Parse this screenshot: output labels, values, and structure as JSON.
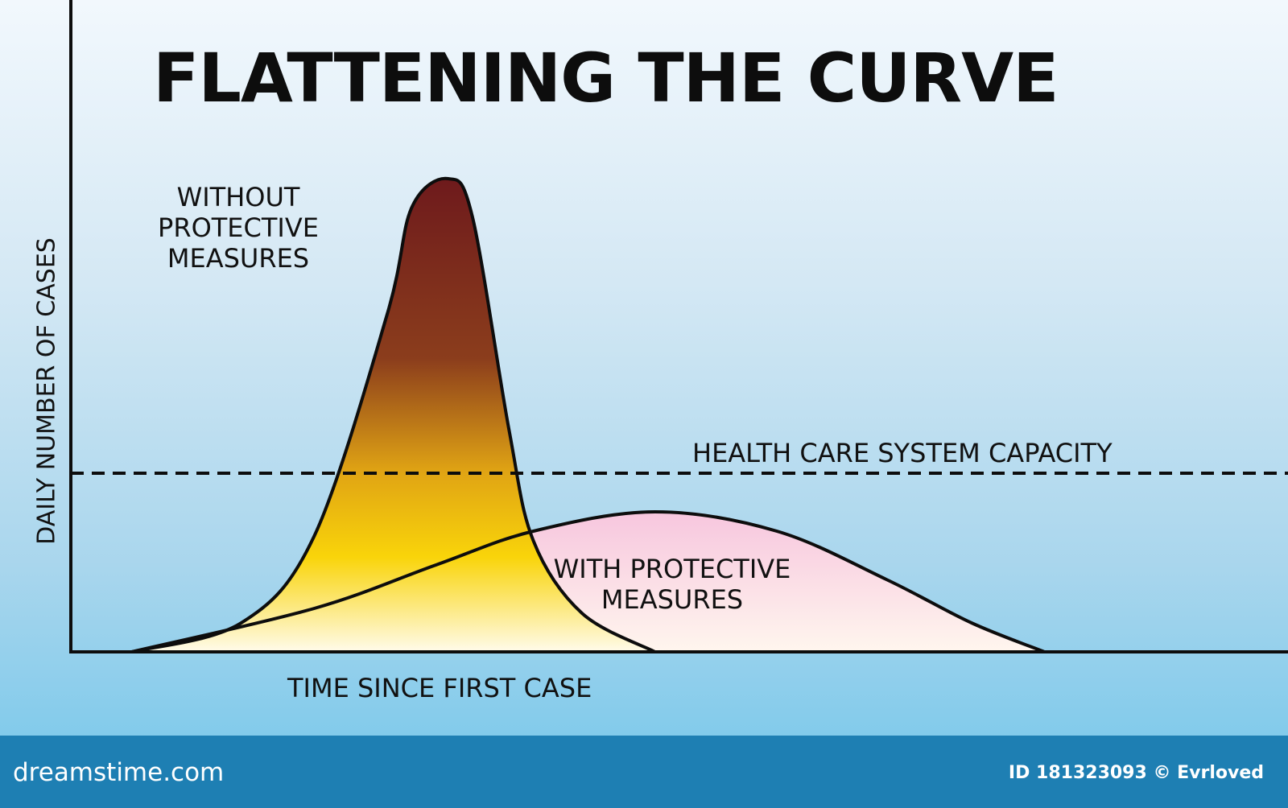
{
  "chart_data": {
    "type": "area",
    "title": "FLATTENING THE CURVE",
    "xlabel": "TIME SINCE FIRST CASE",
    "ylabel": "DAILY NUMBER OF CASES",
    "xlim": [
      0,
      100
    ],
    "ylim": [
      0,
      100
    ],
    "series": [
      {
        "name": "WITHOUT PROTECTIVE MEASURES",
        "x": [
          5,
          14,
          20,
          26,
          28,
          31,
          33,
          36,
          38,
          42,
          48
        ],
        "y": [
          0,
          6,
          24,
          70,
          92,
          98,
          90,
          46,
          23,
          8,
          0
        ]
      },
      {
        "name": "WITH PROTECTIVE MEASURES",
        "x": [
          5,
          20,
          30,
          38,
          48,
          58,
          67,
          74,
          80
        ],
        "y": [
          0,
          9,
          18,
          25,
          29,
          25,
          15,
          6,
          0
        ]
      }
    ],
    "hlines": [
      {
        "label": "HEALTH CARE SYSTEM CAPACITY",
        "y": 37
      }
    ],
    "grid": false,
    "legend": "none",
    "colors": {
      "peak_top": "#6e1a1c",
      "peak_mid": "#8b3d1c",
      "peak_amber": "#e0a414",
      "peak_yellow": "#f9d40a",
      "peak_base": "#fffbea",
      "flat_top": "#f7c6de",
      "flat_base": "#fff6ee",
      "line": "#0d0d0d"
    }
  },
  "labels": {
    "without": [
      "WITHOUT",
      "PROTECTIVE",
      "MEASURES"
    ],
    "with": [
      "WITH PROTECTIVE",
      "MEASURES"
    ]
  },
  "footer": {
    "brand": "dreamstime.com",
    "credit": "ID 181323093 © Evrloved"
  }
}
